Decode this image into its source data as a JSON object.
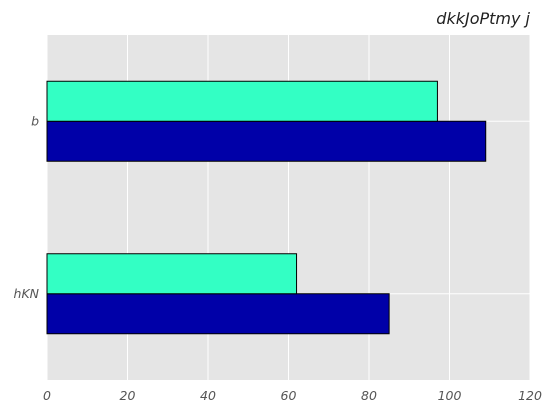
{
  "chart_data": {
    "type": "bar",
    "orientation": "horizontal",
    "title": "dkkJoPtmy j",
    "xlabel": "",
    "ylabel": "",
    "categories": [
      "hKN",
      "b"
    ],
    "series": [
      {
        "values": [
          85,
          109
        ],
        "color": "#0000a8"
      },
      {
        "values": [
          62,
          97
        ],
        "color": "#33ffc4"
      }
    ],
    "xlim": [
      0,
      120
    ],
    "xticks": [
      0,
      20,
      40,
      60,
      80,
      100,
      120
    ],
    "grid": true,
    "legend": "none",
    "colors": {
      "plot_background": "#e5e5e5",
      "grid": "#ffffff",
      "bar_edge": "#000000"
    }
  }
}
